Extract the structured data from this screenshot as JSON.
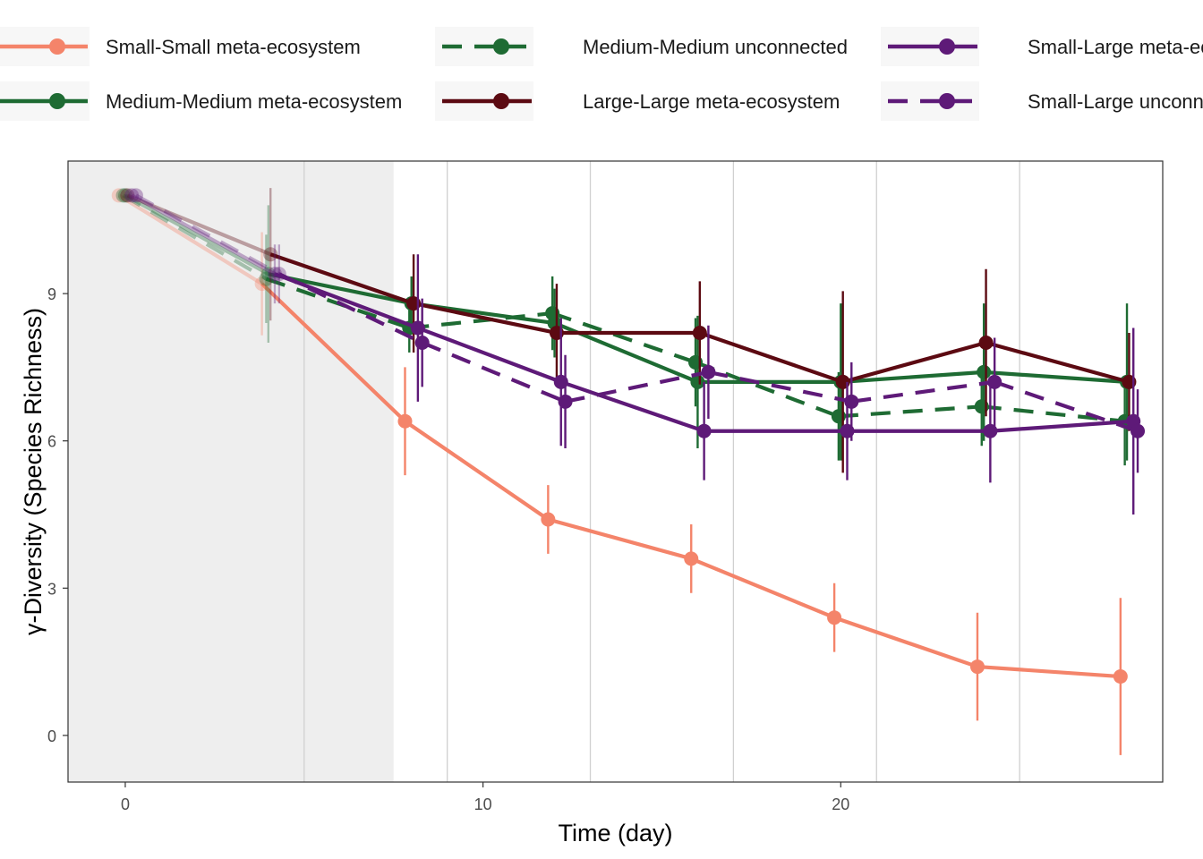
{
  "chart_data": {
    "type": "line",
    "xlabel": "Time (day)",
    "ylabel": "γ-Diversity (Species Richness)",
    "xlim": [
      -1.6,
      29
    ],
    "ylim": [
      -0.95,
      11.7
    ],
    "xticks": [
      0,
      10,
      20
    ],
    "yticks": [
      0,
      3,
      6,
      9
    ],
    "xtick_labels": [
      "0",
      "10",
      "20"
    ],
    "ytick_labels": [
      "0",
      "3",
      "6",
      "9"
    ],
    "grid": "vertical minor lines at 5, 9, 13, 17, 21, 25",
    "grid_x": [
      5,
      9,
      13,
      17,
      21,
      25
    ],
    "shaded_region": {
      "x_from": -1.6,
      "x_to": 7.5,
      "color": "#eeeeee"
    },
    "legend_position": "top",
    "x": [
      0,
      4,
      8,
      12,
      16,
      20,
      24,
      28
    ],
    "series": [
      {
        "name": "Small-Small meta-ecosystem",
        "color": "#f4846a",
        "dash": "solid",
        "x": [
          0,
          4,
          8,
          12,
          16,
          20,
          24,
          28
        ],
        "values": [
          11.0,
          9.2,
          6.4,
          4.4,
          3.6,
          2.4,
          1.4,
          1.2
        ],
        "error": [
          0.0,
          1.05,
          1.1,
          0.7,
          0.7,
          0.7,
          1.1,
          1.6
        ]
      },
      {
        "name": "Medium-Medium meta-ecosystem",
        "color": "#1e6b33",
        "dash": "solid",
        "x": [
          0,
          4,
          8,
          12,
          16,
          20,
          24,
          28
        ],
        "values": [
          11.0,
          9.4,
          8.8,
          8.4,
          7.2,
          7.2,
          7.4,
          7.2
        ],
        "error": [
          0.0,
          1.4,
          0.55,
          0.7,
          1.35,
          1.6,
          1.4,
          1.6
        ]
      },
      {
        "name": "Medium-Medium unconnected",
        "color": "#1e6b33",
        "dash": "dashed",
        "x": [
          0,
          4,
          8,
          12,
          16,
          20,
          24,
          28
        ],
        "values": [
          11.0,
          9.3,
          8.3,
          8.6,
          7.6,
          6.5,
          6.7,
          6.4
        ],
        "error": [
          0.0,
          0.9,
          0.5,
          0.75,
          0.9,
          0.9,
          0.8,
          0.9
        ]
      },
      {
        "name": "Large-Large meta-ecosystem",
        "color": "#5c0a12",
        "dash": "solid",
        "x": [
          0,
          4,
          8,
          12,
          16,
          20,
          24,
          28
        ],
        "values": [
          11.0,
          9.8,
          8.8,
          8.2,
          8.2,
          7.2,
          8.0,
          7.2
        ],
        "error": [
          0.0,
          1.35,
          1.0,
          1.0,
          1.05,
          1.85,
          1.5,
          1.0
        ]
      },
      {
        "name": "Small-Large meta-ecosystem",
        "color": "#5e1a78",
        "dash": "solid",
        "x": [
          0,
          4,
          8,
          12,
          16,
          20,
          24,
          28
        ],
        "values": [
          11.0,
          9.4,
          8.3,
          7.2,
          6.2,
          6.2,
          6.2,
          6.4
        ],
        "error": [
          0.0,
          0.6,
          1.5,
          1.3,
          1.0,
          1.0,
          1.05,
          1.9
        ]
      },
      {
        "name": "Small-Large unconnected",
        "color": "#5e1a78",
        "dash": "dashed",
        "x": [
          0,
          4,
          8,
          12,
          16,
          20,
          24,
          28
        ],
        "values": [
          11.0,
          9.4,
          8.0,
          6.8,
          7.4,
          6.8,
          7.2,
          6.2
        ],
        "error": [
          0.0,
          0.6,
          0.9,
          0.95,
          0.95,
          0.8,
          0.9,
          0.85
        ]
      }
    ]
  }
}
